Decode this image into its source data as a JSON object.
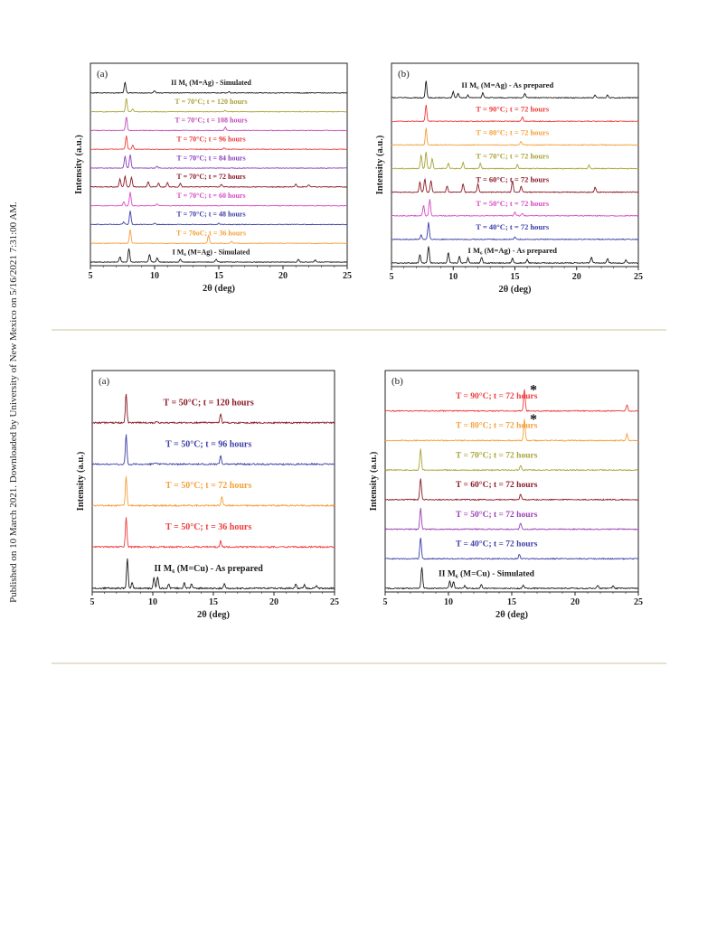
{
  "side_note": "Published on 10 March 2021. Downloaded by University of New Mexico on 5/16/2021 7:31:00 AM.",
  "chart_data": [
    {
      "type": "line",
      "panel_label": "(a)",
      "xlabel": "2θ (deg)",
      "ylabel": "Intensity (a.u.)",
      "xlim": [
        5,
        25
      ],
      "xticks": [
        5,
        10,
        15,
        20,
        25
      ],
      "series": [
        {
          "name": "I M₆ (M=Ag) - Simulated",
          "color": "#1a1a1a",
          "peaks": [
            [
              7.3,
              0.4
            ],
            [
              8.0,
              1.0
            ],
            [
              9.6,
              0.55
            ],
            [
              10.2,
              0.3
            ],
            [
              12.0,
              0.2
            ],
            [
              14.8,
              0.2
            ],
            [
              21.2,
              0.2
            ],
            [
              22.5,
              0.15
            ]
          ]
        },
        {
          "name": "T = 70oC; t = 36 hours",
          "color": "#f5a03a",
          "peaks": [
            [
              8.1,
              1.0
            ],
            [
              14.2,
              0.6
            ],
            [
              16.0,
              0.15
            ]
          ]
        },
        {
          "name": "T = 70°C; t = 48 hours",
          "color": "#3b3fa8",
          "peaks": [
            [
              8.1,
              1.0
            ],
            [
              7.6,
              0.2
            ],
            [
              10.0,
              0.12
            ],
            [
              15.0,
              0.1
            ]
          ]
        },
        {
          "name": "T = 70°C; t = 60 hours",
          "color": "#d84ac5",
          "peaks": [
            [
              8.1,
              1.0
            ],
            [
              7.6,
              0.3
            ],
            [
              10.2,
              0.15
            ]
          ]
        },
        {
          "name": "T = 70°C; t = 72 hours",
          "color": "#8b1a26",
          "peaks": [
            [
              7.3,
              0.6
            ],
            [
              7.7,
              0.8
            ],
            [
              8.2,
              0.7
            ],
            [
              9.5,
              0.4
            ],
            [
              10.3,
              0.3
            ],
            [
              11.0,
              0.3
            ],
            [
              12.0,
              0.25
            ],
            [
              15.2,
              0.2
            ],
            [
              21.0,
              0.2
            ],
            [
              22.0,
              0.15
            ]
          ]
        },
        {
          "name": "T = 70°C; t = 84 hours",
          "color": "#8a3fbf",
          "peaks": [
            [
              7.7,
              0.9
            ],
            [
              8.1,
              1.0
            ],
            [
              10.2,
              0.15
            ]
          ]
        },
        {
          "name": "T = 70°C; t = 96 hours",
          "color": "#ef3b3b",
          "peaks": [
            [
              7.8,
              1.0
            ],
            [
              8.3,
              0.3
            ],
            [
              15.4,
              0.1
            ]
          ]
        },
        {
          "name": "T = 70°C; t = 108 hours",
          "color": "#c24bb8",
          "peaks": [
            [
              7.8,
              1.0
            ],
            [
              15.5,
              0.25
            ]
          ]
        },
        {
          "name": "T = 70°C; t = 120 hours",
          "color": "#a9a436",
          "peaks": [
            [
              7.8,
              1.0
            ],
            [
              8.3,
              0.2
            ],
            [
              15.5,
              0.1
            ]
          ]
        },
        {
          "name": "II M₆ (M=Ag) - Simulated",
          "color": "#1a1a1a",
          "peaks": [
            [
              7.7,
              0.8
            ],
            [
              10.0,
              0.15
            ],
            [
              15.8,
              0.1
            ]
          ]
        }
      ]
    },
    {
      "type": "line",
      "panel_label": "(b)",
      "xlabel": "2θ (deg)",
      "ylabel": "Intensity (a.u.)",
      "xlim": [
        5,
        25
      ],
      "xticks": [
        5,
        10,
        15,
        20,
        25
      ],
      "series": [
        {
          "name": "I M₆ (M=Ag) - As prepared",
          "color": "#1a1a1a",
          "peaks": [
            [
              7.3,
              0.5
            ],
            [
              8.0,
              1.0
            ],
            [
              9.6,
              0.6
            ],
            [
              10.5,
              0.4
            ],
            [
              11.2,
              0.3
            ],
            [
              12.3,
              0.35
            ],
            [
              14.8,
              0.3
            ],
            [
              16.0,
              0.2
            ],
            [
              21.2,
              0.35
            ],
            [
              22.5,
              0.25
            ],
            [
              24.0,
              0.2
            ]
          ]
        },
        {
          "name": "T = 40°C; t = 72 hours",
          "color": "#3b3fa8",
          "peaks": [
            [
              7.4,
              0.3
            ],
            [
              8.0,
              1.0
            ],
            [
              15.0,
              0.15
            ]
          ]
        },
        {
          "name": "T = 50°C; t = 72 hours",
          "color": "#d84ac5",
          "peaks": [
            [
              7.6,
              0.6
            ],
            [
              8.1,
              1.0
            ],
            [
              15.0,
              0.2
            ],
            [
              15.6,
              0.15
            ]
          ]
        },
        {
          "name": "T = 60°C; t = 72 hours",
          "color": "#8b1a26",
          "peaks": [
            [
              7.3,
              0.6
            ],
            [
              7.7,
              0.8
            ],
            [
              8.2,
              0.7
            ],
            [
              9.5,
              0.35
            ],
            [
              10.8,
              0.5
            ],
            [
              12.0,
              0.5
            ],
            [
              14.8,
              0.7
            ],
            [
              15.5,
              0.35
            ],
            [
              21.5,
              0.3
            ]
          ]
        },
        {
          "name": "T = 70°C; t = 72 hours",
          "color": "#a9a436",
          "peaks": [
            [
              7.4,
              0.8
            ],
            [
              7.8,
              1.0
            ],
            [
              8.3,
              0.6
            ],
            [
              9.6,
              0.3
            ],
            [
              10.8,
              0.35
            ],
            [
              12.2,
              0.3
            ],
            [
              15.2,
              0.25
            ],
            [
              21.0,
              0.2
            ]
          ]
        },
        {
          "name": "T = 80°C; t = 72 hours",
          "color": "#f5a03a",
          "peaks": [
            [
              7.8,
              1.0
            ],
            [
              15.5,
              0.2
            ]
          ]
        },
        {
          "name": "T = 90°C; t = 72 hours",
          "color": "#ef3b3b",
          "peaks": [
            [
              7.8,
              1.0
            ],
            [
              15.6,
              0.25
            ]
          ]
        },
        {
          "name": "II M₆ (M=Ag) - As prepared",
          "color": "#1a1a1a",
          "peaks": [
            [
              7.8,
              1.0
            ],
            [
              10.0,
              0.35
            ],
            [
              10.4,
              0.25
            ],
            [
              11.2,
              0.15
            ],
            [
              12.4,
              0.3
            ],
            [
              15.8,
              0.25
            ],
            [
              21.5,
              0.15
            ],
            [
              22.5,
              0.15
            ]
          ]
        }
      ]
    },
    {
      "type": "line",
      "panel_label": "(a)",
      "xlabel": "2θ (deg)",
      "ylabel": "Intensity (a.u.)",
      "xlim": [
        5,
        25
      ],
      "xticks": [
        5,
        10,
        15,
        20,
        25
      ],
      "series": [
        {
          "name": "II M₆ (M=Cu) - As prepared",
          "color": "#1a1a1a",
          "peaks": [
            [
              7.9,
              1.0
            ],
            [
              8.3,
              0.2
            ],
            [
              10.1,
              0.35
            ],
            [
              10.4,
              0.4
            ],
            [
              11.3,
              0.15
            ],
            [
              12.6,
              0.2
            ],
            [
              13.2,
              0.15
            ],
            [
              15.9,
              0.15
            ],
            [
              21.8,
              0.15
            ],
            [
              22.5,
              0.12
            ],
            [
              23.5,
              0.1
            ]
          ]
        },
        {
          "name": "T = 50°C; t = 36 hours",
          "color": "#ef3b3b",
          "peaks": [
            [
              7.8,
              1.0
            ],
            [
              15.6,
              0.2
            ]
          ]
        },
        {
          "name": "T = 50°C; t = 72 hours",
          "color": "#f5a03a",
          "peaks": [
            [
              7.8,
              1.0
            ],
            [
              15.7,
              0.3
            ]
          ]
        },
        {
          "name": "T = 50°C; t = 96 hours",
          "color": "#3b3fa8",
          "peaks": [
            [
              7.8,
              1.0
            ],
            [
              15.6,
              0.3
            ],
            [
              10.2,
              0.05
            ]
          ]
        },
        {
          "name": "T = 50°C; t = 120 hours",
          "color": "#8b1a26",
          "peaks": [
            [
              7.8,
              1.0
            ],
            [
              15.6,
              0.3
            ],
            [
              10.3,
              0.05
            ]
          ]
        }
      ]
    },
    {
      "type": "line",
      "panel_label": "(b)",
      "xlabel": "2θ (deg)",
      "ylabel": "Intensity (a.u.)",
      "xlim": [
        5,
        25
      ],
      "xticks": [
        5,
        10,
        15,
        20,
        25
      ],
      "annotations": [
        "*",
        "*"
      ],
      "series": [
        {
          "name": "II M₆ (M=Cu) - Simulated",
          "color": "#1a1a1a",
          "peaks": [
            [
              7.9,
              1.0
            ],
            [
              10.1,
              0.35
            ],
            [
              10.4,
              0.3
            ],
            [
              11.3,
              0.12
            ],
            [
              12.6,
              0.2
            ],
            [
              15.9,
              0.15
            ],
            [
              21.8,
              0.15
            ],
            [
              23.0,
              0.12
            ]
          ]
        },
        {
          "name": "T = 40°C; t = 72 hours",
          "color": "#3b3fa8",
          "peaks": [
            [
              7.8,
              1.0
            ],
            [
              15.6,
              0.2
            ]
          ]
        },
        {
          "name": "T = 50°C; t = 72 hours",
          "color": "#9b3fb5",
          "peaks": [
            [
              7.8,
              1.0
            ],
            [
              15.7,
              0.3
            ]
          ]
        },
        {
          "name": "T = 60°C; t = 72 hours",
          "color": "#8b1a26",
          "peaks": [
            [
              7.8,
              1.0
            ],
            [
              15.7,
              0.25
            ]
          ]
        },
        {
          "name": "T = 70°C; t = 72 hours",
          "color": "#a9a436",
          "peaks": [
            [
              7.8,
              1.0
            ],
            [
              15.7,
              0.2
            ]
          ]
        },
        {
          "name": "T = 80°C; t = 72 hours",
          "color": "#f5a03a",
          "peaks": [
            [
              16.0,
              1.0
            ],
            [
              24.1,
              0.3
            ]
          ]
        },
        {
          "name": "T = 90°C; t = 72 hours",
          "color": "#ef3b3b",
          "peaks": [
            [
              16.0,
              1.0
            ],
            [
              24.1,
              0.3
            ]
          ]
        }
      ]
    }
  ]
}
